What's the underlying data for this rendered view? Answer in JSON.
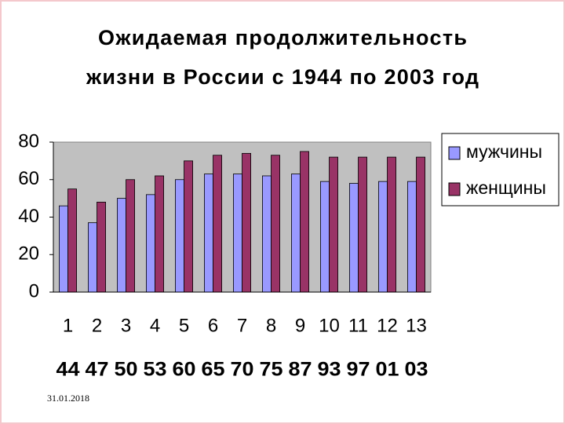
{
  "chart_data": {
    "type": "bar",
    "title": [
      "Ожидаемая продолжительность",
      "жизни в России с 1944 по 2003 год"
    ],
    "categories": [
      "1",
      "2",
      "3",
      "4",
      "5",
      "6",
      "7",
      "8",
      "9",
      "10",
      "11",
      "12",
      "13"
    ],
    "year_labels": [
      "44",
      "47",
      "50",
      "53",
      "60",
      "65",
      "70",
      "75",
      "87",
      "93",
      "97",
      "01",
      "03"
    ],
    "series": [
      {
        "name": "мужчины",
        "color": "#9999ff",
        "values": [
          46,
          37,
          50,
          52,
          60,
          63,
          63,
          62,
          63,
          59,
          58,
          59,
          59
        ]
      },
      {
        "name": "женщины",
        "color": "#993366",
        "values": [
          55,
          48,
          60,
          62,
          70,
          73,
          74,
          73,
          75,
          72,
          72,
          72,
          72
        ]
      }
    ],
    "ylim": [
      0,
      80
    ],
    "yticks": [
      0,
      20,
      40,
      60,
      80
    ],
    "grid": false,
    "legend": "right"
  },
  "footer_date": "31.01.2018"
}
